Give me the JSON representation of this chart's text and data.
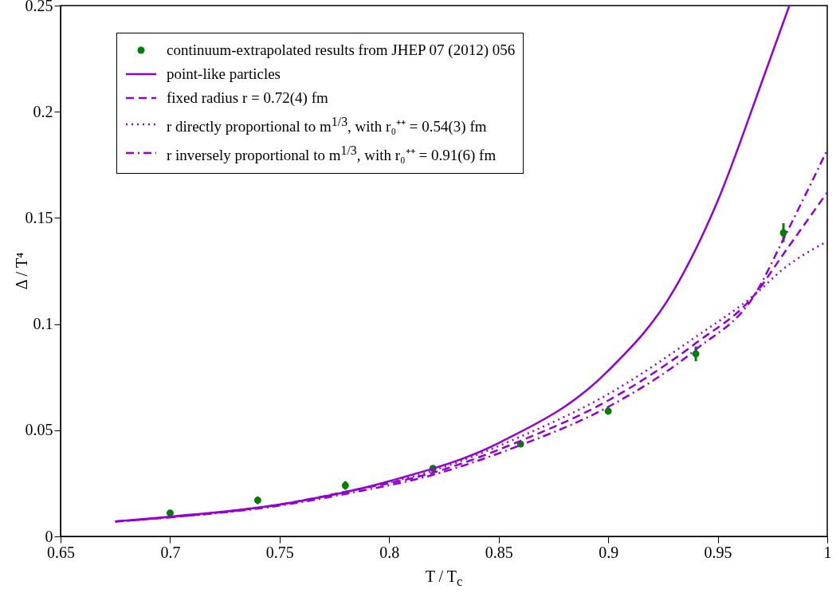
{
  "chart_data": {
    "type": "line",
    "xlabel": "T / T$_{c}$",
    "ylabel": "Δ / T⁴",
    "xlim": [
      0.65,
      1
    ],
    "xticks": [
      0.65,
      0.7,
      0.75,
      0.8,
      0.85,
      0.9,
      0.95,
      1
    ],
    "ylim": [
      0,
      0.25
    ],
    "yticks": [
      0,
      0.05,
      0.1,
      0.15,
      0.2,
      0.25
    ],
    "grid": false,
    "legend": "top left",
    "series": [
      {
        "name": "continuum-extrapolated results from JHEP 07 (2012) 056",
        "type": "scatter",
        "marker": "circle",
        "color": "#008000",
        "x": [
          0.7,
          0.74,
          0.78,
          0.82,
          0.86,
          0.9,
          0.94,
          0.98
        ],
        "values": [
          0.011,
          0.017,
          0.024,
          0.032,
          0.0435,
          0.059,
          0.086,
          0.143
        ],
        "errors": [
          0.0015,
          0.0018,
          0.002,
          0.0015,
          0.0012,
          0.0015,
          0.0035,
          0.0045
        ]
      },
      {
        "name": "point-like particles",
        "line_style": "solid",
        "color": "#9400d3",
        "x": [
          0.675,
          0.7,
          0.75,
          0.8,
          0.85,
          0.9,
          0.93,
          0.95,
          0.97,
          0.9827
        ],
        "values": [
          0.007,
          0.0093,
          0.015,
          0.026,
          0.044,
          0.078,
          0.116,
          0.158,
          0.2136,
          0.25
        ]
      },
      {
        "name": "fixed radius r = 0.72(4) fm",
        "line_style": "dashed",
        "color": "#9400d3",
        "x": [
          0.675,
          0.7,
          0.75,
          0.78,
          0.82,
          0.86,
          0.9,
          0.94,
          0.967,
          0.98,
          1
        ],
        "values": [
          0.007,
          0.009,
          0.015,
          0.021,
          0.03,
          0.045,
          0.064,
          0.091,
          0.114,
          0.133,
          0.162
        ]
      },
      {
        "name": "r directly proportional to m$^{1/3}$, with r₀⁺⁺ = 0.54(3) fm",
        "line_style": "dotted",
        "color": "#9400d3",
        "x": [
          0.675,
          0.7,
          0.75,
          0.78,
          0.82,
          0.86,
          0.9,
          0.94,
          0.967,
          0.98,
          1
        ],
        "values": [
          0.007,
          0.009,
          0.015,
          0.021,
          0.031,
          0.047,
          0.067,
          0.094,
          0.114,
          0.126,
          0.139
        ]
      },
      {
        "name": "r inversely proportional to m$^{1/3}$, with r₀⁺⁺ = 0.91(6) fm",
        "line_style": "dashdot",
        "color": "#9400d3",
        "x": [
          0.675,
          0.7,
          0.75,
          0.78,
          0.82,
          0.86,
          0.9,
          0.94,
          0.967,
          0.98,
          1
        ],
        "values": [
          0.007,
          0.009,
          0.0145,
          0.02,
          0.029,
          0.043,
          0.061,
          0.088,
          0.114,
          0.14,
          0.182
        ]
      }
    ]
  }
}
